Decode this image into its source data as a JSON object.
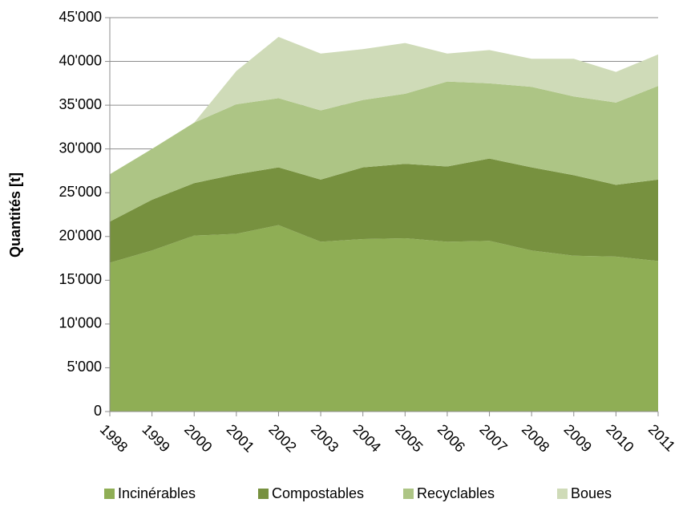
{
  "chart_data": {
    "type": "stacked_area",
    "ylabel": "Quantités [t]",
    "categories": [
      "1998",
      "1999",
      "2000",
      "2001",
      "2002",
      "2003",
      "2004",
      "2005",
      "2006",
      "2007",
      "2008",
      "2009",
      "2010",
      "2011"
    ],
    "series": [
      {
        "name": "Incinérables",
        "color": "#8fae55",
        "values": [
          17000,
          18400,
          20100,
          20300,
          21300,
          19400,
          19700,
          19800,
          19400,
          19500,
          18400,
          17800,
          17700,
          17200
        ]
      },
      {
        "name": "Compostables",
        "color": "#77913f",
        "values": [
          4700,
          5800,
          6000,
          6800,
          6600,
          7100,
          8200,
          8500,
          8600,
          9400,
          9500,
          9200,
          8200,
          9300
        ]
      },
      {
        "name": "Recyclables",
        "color": "#adc585",
        "values": [
          5400,
          5800,
          6900,
          8000,
          7900,
          7900,
          7700,
          8000,
          9700,
          8600,
          9200,
          9000,
          9400,
          10700
        ]
      },
      {
        "name": "Boues",
        "color": "#cfdbb8",
        "values": [
          0,
          0,
          0,
          3800,
          7000,
          6500,
          5800,
          5800,
          3200,
          3800,
          3200,
          4300,
          3500,
          3600
        ]
      }
    ],
    "ylim": [
      0,
      45000
    ],
    "yticks": [
      0,
      {
        "value": 5000,
        "label": "5'000"
      },
      {
        "value": 10000,
        "label": "10'000"
      },
      {
        "value": 15000,
        "label": "15'000"
      },
      {
        "value": 20000,
        "label": "20'000"
      },
      {
        "value": 25000,
        "label": "25'000"
      },
      {
        "value": 30000,
        "label": "30'000"
      },
      {
        "value": 35000,
        "label": "35'000"
      },
      {
        "value": 40000,
        "label": "40'000"
      },
      {
        "value": 45000,
        "label": "45'000"
      }
    ],
    "grid": true,
    "legend": "bottom"
  }
}
